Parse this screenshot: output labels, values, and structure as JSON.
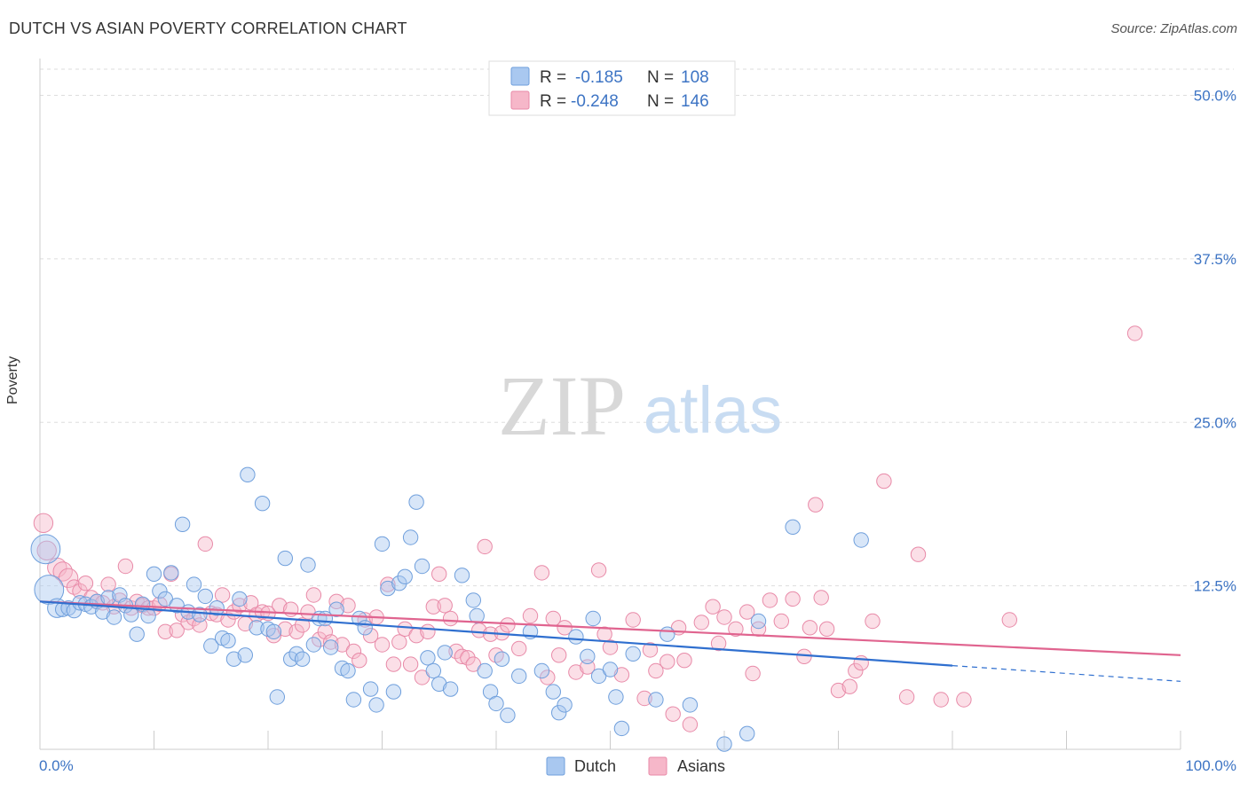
{
  "title": "DUTCH VS ASIAN POVERTY CORRELATION CHART",
  "source": "Source: ZipAtlas.com",
  "watermark": {
    "zip": "ZIP",
    "atlas": "atlas"
  },
  "colors": {
    "dutch_fill": "#a9c8f0",
    "dutch_stroke": "#6f9fdc",
    "dutch_line": "#2f6fcf",
    "asian_fill": "#f6b7c9",
    "asian_stroke": "#e88aa8",
    "asian_line": "#e0648f",
    "tick_label": "#3d74c4",
    "grid": "#dddddd"
  },
  "legend": {
    "rows": [
      {
        "r_label": "R =",
        "r_value": "-0.185",
        "n_label": "N =",
        "n_value": "108"
      },
      {
        "r_label": "R =",
        "r_value": "-0.248",
        "n_label": "N =",
        "n_value": "146"
      }
    ]
  },
  "bottom_legend": [
    "Dutch",
    "Asians"
  ],
  "chart_data": {
    "type": "scatter",
    "title": "DUTCH VS ASIAN POVERTY CORRELATION CHART",
    "xlabel": "",
    "ylabel": "Poverty",
    "xlim": [
      0,
      100
    ],
    "ylim": [
      0,
      52
    ],
    "x_tick_labels": [
      "0.0%",
      "100.0%"
    ],
    "y_ticks": [
      12.5,
      25.0,
      37.5,
      50.0
    ],
    "y_tick_labels": [
      "12.5%",
      "25.0%",
      "37.5%",
      "50.0%"
    ],
    "grid": "horizontal dashed",
    "legend_position": "top-center",
    "series": [
      {
        "name": "Dutch",
        "r": -0.185,
        "n": 108,
        "trend": {
          "x0": 0,
          "y0": 11.3,
          "x1": 80,
          "y1": 6.4,
          "dashed_to_x": 100,
          "dashed_to_y": 5.2
        },
        "points": [
          [
            0.5,
            15.3,
            2.0
          ],
          [
            0.8,
            12.2,
            2.0
          ],
          [
            1.5,
            10.8,
            1.3
          ],
          [
            2,
            10.7,
            1
          ],
          [
            2.5,
            10.8,
            1
          ],
          [
            3,
            10.6,
            1
          ],
          [
            3.5,
            11.2,
            1
          ],
          [
            4,
            11.1,
            1
          ],
          [
            4.5,
            10.9,
            1
          ],
          [
            5,
            11.3,
            1
          ],
          [
            5.5,
            10.5,
            1
          ],
          [
            6,
            11.6,
            1
          ],
          [
            6.5,
            10.1,
            1
          ],
          [
            7,
            11.8,
            1
          ],
          [
            7.5,
            11.0,
            1
          ],
          [
            8,
            10.3,
            1
          ],
          [
            8.5,
            8.8,
            1
          ],
          [
            9,
            11.1,
            1
          ],
          [
            9.5,
            10.2,
            1
          ],
          [
            10,
            13.4,
            1
          ],
          [
            10.5,
            12.1,
            1
          ],
          [
            11,
            11.5,
            1
          ],
          [
            11.5,
            13.5,
            1
          ],
          [
            12,
            11.0,
            1
          ],
          [
            12.5,
            17.2,
            1
          ],
          [
            13,
            10.5,
            1
          ],
          [
            13.5,
            12.6,
            1
          ],
          [
            14,
            10.3,
            1
          ],
          [
            14.5,
            11.7,
            1
          ],
          [
            15,
            7.9,
            1
          ],
          [
            15.5,
            10.8,
            1
          ],
          [
            16,
            8.5,
            1
          ],
          [
            16.5,
            8.3,
            1
          ],
          [
            17,
            6.9,
            1
          ],
          [
            17.5,
            11.5,
            1
          ],
          [
            18,
            7.2,
            1
          ],
          [
            18.2,
            21.0,
            1
          ],
          [
            19,
            9.3,
            1
          ],
          [
            19.5,
            18.8,
            1
          ],
          [
            20,
            9.2,
            1
          ],
          [
            20.5,
            9.0,
            1
          ],
          [
            20.8,
            4.0,
            1
          ],
          [
            21.5,
            14.6,
            1
          ],
          [
            22,
            6.9,
            1
          ],
          [
            22.5,
            7.3,
            1
          ],
          [
            23,
            6.9,
            1
          ],
          [
            23.5,
            14.1,
            1
          ],
          [
            24,
            8.0,
            1
          ],
          [
            24.5,
            10.0,
            1
          ],
          [
            25,
            10.0,
            1
          ],
          [
            25.5,
            7.8,
            1
          ],
          [
            26,
            10.7,
            1
          ],
          [
            26.5,
            6.2,
            1
          ],
          [
            27,
            6.0,
            1
          ],
          [
            27.5,
            3.8,
            1
          ],
          [
            28,
            10.0,
            1
          ],
          [
            28.5,
            9.3,
            1
          ],
          [
            29,
            4.6,
            1
          ],
          [
            29.5,
            3.4,
            1
          ],
          [
            30,
            15.7,
            1
          ],
          [
            30.5,
            12.3,
            1
          ],
          [
            31,
            4.4,
            1
          ],
          [
            31.5,
            12.7,
            1
          ],
          [
            32,
            13.2,
            1
          ],
          [
            32.5,
            16.2,
            1
          ],
          [
            33,
            18.9,
            1
          ],
          [
            33.5,
            14.0,
            1
          ],
          [
            34,
            7.0,
            1
          ],
          [
            34.5,
            6.0,
            1
          ],
          [
            35,
            5.0,
            1
          ],
          [
            35.5,
            7.4,
            1
          ],
          [
            36,
            4.6,
            1
          ],
          [
            37,
            13.3,
            1
          ],
          [
            38,
            11.4,
            1
          ],
          [
            38.3,
            10.2,
            1
          ],
          [
            39,
            6.0,
            1
          ],
          [
            39.5,
            4.4,
            1
          ],
          [
            40,
            3.5,
            1
          ],
          [
            40.5,
            6.9,
            1
          ],
          [
            41,
            2.6,
            1
          ],
          [
            42,
            5.6,
            1
          ],
          [
            43,
            9.0,
            1
          ],
          [
            44,
            6.0,
            1
          ],
          [
            45,
            4.4,
            1
          ],
          [
            45.5,
            2.8,
            1
          ],
          [
            46,
            3.4,
            1
          ],
          [
            47,
            8.6,
            1
          ],
          [
            48,
            7.1,
            1
          ],
          [
            48.5,
            10.0,
            1
          ],
          [
            49,
            5.6,
            1
          ],
          [
            50,
            6.1,
            1
          ],
          [
            50.5,
            4.0,
            1
          ],
          [
            51,
            1.6,
            1
          ],
          [
            52,
            7.3,
            1
          ],
          [
            54,
            3.8,
            1
          ],
          [
            55,
            8.8,
            1
          ],
          [
            57,
            3.4,
            1
          ],
          [
            60,
            0.4,
            1
          ],
          [
            62,
            1.2,
            1
          ],
          [
            63,
            9.8,
            1
          ],
          [
            66,
            17.0,
            1
          ],
          [
            72,
            16.0,
            1
          ]
        ]
      },
      {
        "name": "Asians",
        "r": -0.248,
        "n": 146,
        "trend": {
          "x0": 0,
          "y0": 11.3,
          "x1": 100,
          "y1": 7.2
        },
        "points": [
          [
            0.3,
            17.3,
            1.3
          ],
          [
            0.6,
            15.2,
            1.3
          ],
          [
            1.5,
            13.9,
            1.3
          ],
          [
            2,
            13.6,
            1.3
          ],
          [
            2.5,
            13.1,
            1.3
          ],
          [
            3,
            12.4,
            1
          ],
          [
            3.5,
            12.1,
            1
          ],
          [
            4,
            12.7,
            1
          ],
          [
            4.5,
            11.6,
            1
          ],
          [
            5,
            11.3,
            1
          ],
          [
            5.5,
            11.2,
            1
          ],
          [
            6,
            12.6,
            1
          ],
          [
            6.5,
            10.9,
            1
          ],
          [
            7,
            11.4,
            1
          ],
          [
            7.5,
            14.0,
            1
          ],
          [
            8,
            10.8,
            1
          ],
          [
            8.5,
            11.3,
            1
          ],
          [
            9,
            11.0,
            1
          ],
          [
            9.5,
            10.8,
            1
          ],
          [
            10,
            10.8,
            1
          ],
          [
            10.5,
            11.1,
            1
          ],
          [
            11,
            9.0,
            1
          ],
          [
            11.5,
            13.4,
            1
          ],
          [
            12,
            9.1,
            1
          ],
          [
            12.5,
            10.3,
            1
          ],
          [
            13,
            9.7,
            1
          ],
          [
            13.5,
            10.0,
            1
          ],
          [
            14,
            9.5,
            1
          ],
          [
            14.5,
            15.7,
            1
          ],
          [
            15,
            10.4,
            1
          ],
          [
            15.5,
            10.3,
            1
          ],
          [
            16,
            11.8,
            1
          ],
          [
            16.5,
            9.9,
            1
          ],
          [
            17,
            10.5,
            1
          ],
          [
            17.5,
            11.0,
            1
          ],
          [
            18,
            9.6,
            1
          ],
          [
            18.5,
            11.2,
            1
          ],
          [
            19,
            10.3,
            1
          ],
          [
            19.5,
            10.5,
            1
          ],
          [
            20,
            10.4,
            1
          ],
          [
            20.5,
            8.7,
            1
          ],
          [
            21,
            11.0,
            1
          ],
          [
            21.5,
            9.2,
            1
          ],
          [
            22,
            10.7,
            1
          ],
          [
            22.5,
            9.0,
            1
          ],
          [
            23,
            9.5,
            1
          ],
          [
            23.5,
            10.5,
            1
          ],
          [
            24,
            11.8,
            1
          ],
          [
            24.5,
            8.4,
            1
          ],
          [
            25,
            9.0,
            1
          ],
          [
            25.5,
            8.2,
            1
          ],
          [
            26,
            11.3,
            1
          ],
          [
            26.5,
            8.0,
            1
          ],
          [
            27,
            11.0,
            1
          ],
          [
            27.5,
            7.5,
            1
          ],
          [
            28,
            6.8,
            1
          ],
          [
            28.5,
            9.9,
            1
          ],
          [
            29,
            8.7,
            1
          ],
          [
            29.5,
            10.1,
            1
          ],
          [
            30,
            8.0,
            1
          ],
          [
            30.5,
            12.6,
            1
          ],
          [
            31,
            6.5,
            1
          ],
          [
            31.5,
            8.2,
            1
          ],
          [
            32,
            9.2,
            1
          ],
          [
            32.5,
            6.5,
            1
          ],
          [
            33,
            8.7,
            1
          ],
          [
            33.5,
            5.5,
            1
          ],
          [
            34,
            9.0,
            1
          ],
          [
            34.5,
            10.9,
            1
          ],
          [
            35,
            13.4,
            1
          ],
          [
            35.5,
            11.0,
            1
          ],
          [
            36,
            10.0,
            1
          ],
          [
            36.5,
            7.5,
            1
          ],
          [
            37,
            7.1,
            1
          ],
          [
            37.5,
            7.0,
            1
          ],
          [
            38,
            6.5,
            1
          ],
          [
            38.5,
            9.1,
            1
          ],
          [
            39,
            15.5,
            1
          ],
          [
            39.5,
            8.8,
            1
          ],
          [
            40,
            7.2,
            1
          ],
          [
            40.5,
            8.9,
            1
          ],
          [
            41,
            9.5,
            1
          ],
          [
            42,
            7.7,
            1
          ],
          [
            43,
            10.2,
            1
          ],
          [
            44,
            13.5,
            1
          ],
          [
            44.5,
            5.5,
            1
          ],
          [
            45,
            10.0,
            1
          ],
          [
            45.5,
            7.2,
            1
          ],
          [
            46,
            9.3,
            1
          ],
          [
            47,
            5.9,
            1
          ],
          [
            48,
            6.3,
            1
          ],
          [
            49,
            13.7,
            1
          ],
          [
            49.5,
            8.8,
            1
          ],
          [
            50,
            7.8,
            1
          ],
          [
            51,
            5.7,
            1
          ],
          [
            52,
            9.9,
            1
          ],
          [
            53,
            3.9,
            1
          ],
          [
            53.5,
            7.6,
            1
          ],
          [
            54,
            6.0,
            1
          ],
          [
            55,
            6.7,
            1
          ],
          [
            55.5,
            2.7,
            1
          ],
          [
            56,
            9.3,
            1
          ],
          [
            56.5,
            6.8,
            1
          ],
          [
            57,
            1.9,
            1
          ],
          [
            58,
            9.7,
            1
          ],
          [
            59,
            10.9,
            1
          ],
          [
            59.5,
            8.1,
            1
          ],
          [
            60,
            10.1,
            1
          ],
          [
            61,
            9.2,
            1
          ],
          [
            62,
            10.5,
            1
          ],
          [
            62.5,
            5.8,
            1
          ],
          [
            63,
            9.2,
            1
          ],
          [
            64,
            11.4,
            1
          ],
          [
            65,
            9.8,
            1
          ],
          [
            66,
            11.5,
            1
          ],
          [
            67,
            7.1,
            1
          ],
          [
            67.5,
            9.3,
            1
          ],
          [
            68,
            18.7,
            1
          ],
          [
            68.5,
            11.6,
            1
          ],
          [
            69,
            9.2,
            1
          ],
          [
            70,
            4.5,
            1
          ],
          [
            71,
            4.8,
            1
          ],
          [
            71.5,
            6.0,
            1
          ],
          [
            72,
            6.6,
            1
          ],
          [
            73,
            9.8,
            1
          ],
          [
            74,
            20.5,
            1
          ],
          [
            76,
            4.0,
            1
          ],
          [
            77,
            14.9,
            1
          ],
          [
            79,
            3.8,
            1
          ],
          [
            81,
            3.8,
            1
          ],
          [
            85,
            9.9,
            1
          ],
          [
            96,
            31.8,
            1
          ]
        ]
      }
    ]
  }
}
